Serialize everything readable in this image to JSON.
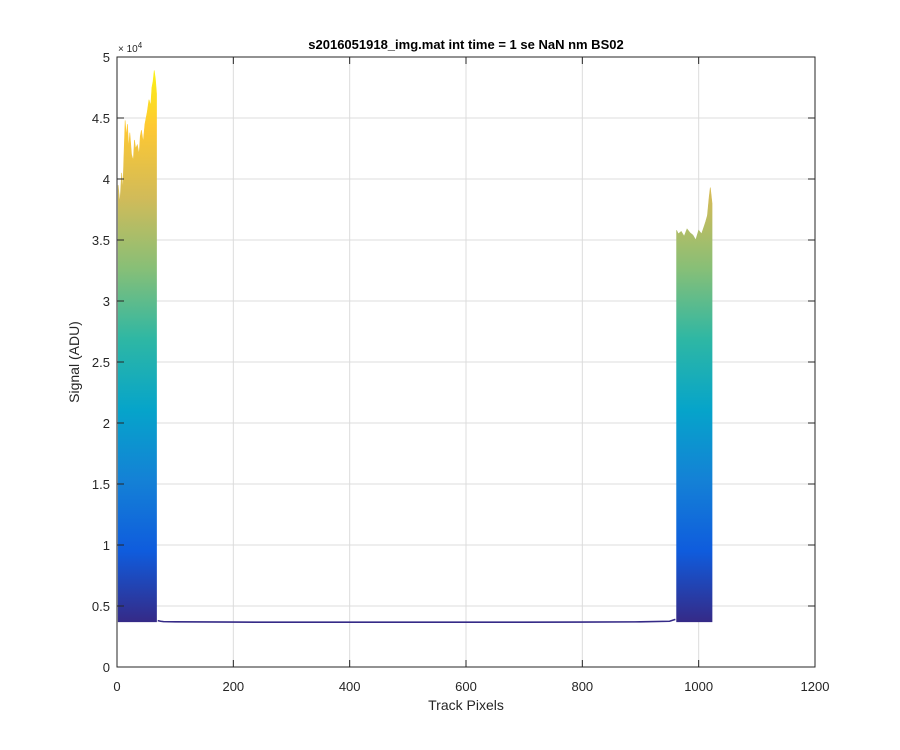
{
  "chart_data": {
    "type": "area",
    "title": "s2016051918_img.mat int time = 1 se  NaN nm BS02",
    "xlabel": "Track Pixels",
    "ylabel": "Signal (ADU)",
    "xlim": [
      0,
      1200
    ],
    "ylim": [
      0,
      50000
    ],
    "x_ticks": [
      0,
      200,
      400,
      600,
      800,
      1000,
      1200
    ],
    "x_tick_labels": [
      "0",
      "200",
      "400",
      "600",
      "800",
      "1000",
      "1200"
    ],
    "y_ticks": [
      0,
      5000,
      10000,
      15000,
      20000,
      25000,
      30000,
      35000,
      40000,
      45000,
      50000
    ],
    "y_tick_labels": [
      "0",
      "0.5",
      "1",
      "1.5",
      "2",
      "2.5",
      "3",
      "3.5",
      "4",
      "4.5",
      "5"
    ],
    "y_exponent_label": "× 10",
    "y_exponent_power": "4",
    "grid": true,
    "baseline": 3700,
    "colormap": [
      "#352a87",
      "#0f5cdd",
      "#1481d6",
      "#06a4ca",
      "#2eb7a4",
      "#87bf77",
      "#d1bb59",
      "#fec832",
      "#f9fb0e"
    ],
    "series": [
      {
        "x": [
          2,
          5,
          8,
          10,
          12,
          14,
          16,
          18,
          20,
          22,
          25,
          28,
          30,
          32,
          35,
          38,
          40,
          42,
          45,
          48,
          50,
          52,
          55,
          58,
          60,
          62,
          64,
          66,
          68
        ],
        "y": [
          39500,
          38000,
          40500,
          39000,
          42000,
          44800,
          43500,
          44500,
          42500,
          43800,
          42000,
          41500,
          43200,
          42500,
          42800,
          42000,
          43500,
          44000,
          43000,
          44500,
          45000,
          45500,
          46500,
          46000,
          47500,
          48000,
          48900,
          48200,
          47000
        ]
      },
      {
        "x": [
          70,
          75,
          80,
          100,
          150,
          200,
          300,
          400,
          500,
          600,
          700,
          800,
          900,
          950,
          960
        ],
        "y": [
          3800,
          3750,
          3720,
          3700,
          3690,
          3680,
          3670,
          3670,
          3670,
          3670,
          3670,
          3680,
          3700,
          3750,
          3900
        ]
      },
      {
        "x": [
          962,
          965,
          970,
          975,
          980,
          985,
          990,
          995,
          1000,
          1005,
          1010,
          1012,
          1015,
          1018,
          1020,
          1023
        ],
        "y": [
          35800,
          35500,
          35700,
          35300,
          35900,
          35600,
          35400,
          35000,
          35800,
          35500,
          36200,
          36500,
          37000,
          38500,
          39300,
          38000
        ]
      }
    ]
  }
}
